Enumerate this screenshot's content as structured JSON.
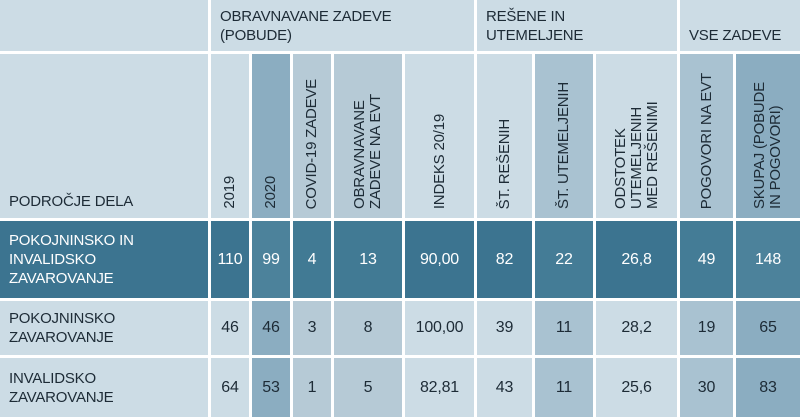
{
  "table": {
    "corner_label": "PODROČJE DELA",
    "groups": [
      {
        "label": "OBRAVNAVANE ZADEVE (POBUDE)",
        "span": 5
      },
      {
        "label": "REŠENE IN UTEMELJENE",
        "span": 3
      },
      {
        "label": "VSE ZADEVE",
        "span": 2
      }
    ],
    "columns": [
      {
        "label": "2019",
        "tint": "light"
      },
      {
        "label": "2020",
        "tint": "mdark"
      },
      {
        "label": "COVID-19 ZADEVE",
        "tint": "mlight"
      },
      {
        "label": "OBRAVNAVANE ZADEVE NA EVT",
        "tint": "mlight"
      },
      {
        "label": "INDEKS 20/19",
        "tint": "light"
      },
      {
        "label": "ŠT. REŠENIH",
        "tint": "light"
      },
      {
        "label": "ŠT. UTEMELJENIH",
        "tint": "med"
      },
      {
        "label": "ODSTOTEK UTEMELJENIH MED REŠENIMI",
        "tint": "light"
      },
      {
        "label": "POGOVORI NA EVT",
        "tint": "med"
      },
      {
        "label": "SKUPAJ (POBUDE IN POGOVORI)",
        "tint": "mdark"
      }
    ],
    "rows": [
      {
        "label": "POKOJNINSKO IN INVALIDSKO ZAVAROVANJE",
        "emphasis": true,
        "values": [
          "110",
          "99",
          "4",
          "13",
          "90,00",
          "82",
          "22",
          "26,8",
          "49",
          "148"
        ]
      },
      {
        "label": "POKOJNINSKO ZAVAROVANJE",
        "emphasis": false,
        "values": [
          "46",
          "46",
          "3",
          "8",
          "100,00",
          "39",
          "11",
          "28,2",
          "19",
          "65"
        ]
      },
      {
        "label": "INVALIDSKO ZAVAROVANJE",
        "emphasis": false,
        "values": [
          "64",
          "53",
          "1",
          "5",
          "82,81",
          "43",
          "11",
          "25,6",
          "30",
          "83"
        ]
      }
    ],
    "colors": {
      "cell_light": "#ccdce5",
      "cell_medium_light": "#b6cad6",
      "cell_medium": "#a9c2d1",
      "cell_medium_dark": "#8badc1",
      "row_emphasis_dark": "#3c7490",
      "row_emphasis_on_medium_light": "#417a94",
      "row_emphasis_on_medium": "#447c96",
      "row_emphasis_on_medium_dark": "#4c829b",
      "text_dark": "#1d2b36",
      "text_light": "#ffffff",
      "gap_white": "#ffffff"
    }
  },
  "chart_data": {
    "type": "table",
    "row_header": "PODROČJE DELA",
    "column_groups": [
      {
        "label": "OBRAVNAVANE ZADEVE (POBUDE)",
        "columns": [
          "2019",
          "2020",
          "COVID-19 ZADEVE",
          "OBRAVNAVANE ZADEVE NA EVT",
          "INDEKS 20/19"
        ]
      },
      {
        "label": "REŠENE IN UTEMELJENE",
        "columns": [
          "ŠT. REŠENIH",
          "ŠT. UTEMELJENIH",
          "ODSTOTEK UTEMELJENIH MED REŠENIMI"
        ]
      },
      {
        "label": "VSE ZADEVE",
        "columns": [
          "POGOVORI NA EVT",
          "SKUPAJ (POBUDE IN POGOVORI)"
        ]
      }
    ],
    "columns": [
      "2019",
      "2020",
      "COVID-19 ZADEVE",
      "OBRAVNAVANE ZADEVE NA EVT",
      "INDEKS 20/19",
      "ŠT. REŠENIH",
      "ŠT. UTEMELJENIH",
      "ODSTOTEK UTEMELJENIH MED REŠENIMI",
      "POGOVORI NA EVT",
      "SKUPAJ (POBUDE IN POGOVORI)"
    ],
    "rows": [
      {
        "area": "POKOJNINSKO IN INVALIDSKO ZAVAROVANJE",
        "emphasized": true,
        "values": [
          110,
          99,
          4,
          13,
          90.0,
          82,
          22,
          26.8,
          49,
          148
        ]
      },
      {
        "area": "POKOJNINSKO ZAVAROVANJE",
        "emphasized": false,
        "values": [
          46,
          46,
          3,
          8,
          100.0,
          39,
          11,
          28.2,
          19,
          65
        ]
      },
      {
        "area": "INVALIDSKO ZAVAROVANJE",
        "emphasized": false,
        "values": [
          64,
          53,
          1,
          5,
          82.81,
          43,
          11,
          25.6,
          30,
          83
        ]
      }
    ],
    "number_format": "decimal comma (sl-SI)"
  }
}
